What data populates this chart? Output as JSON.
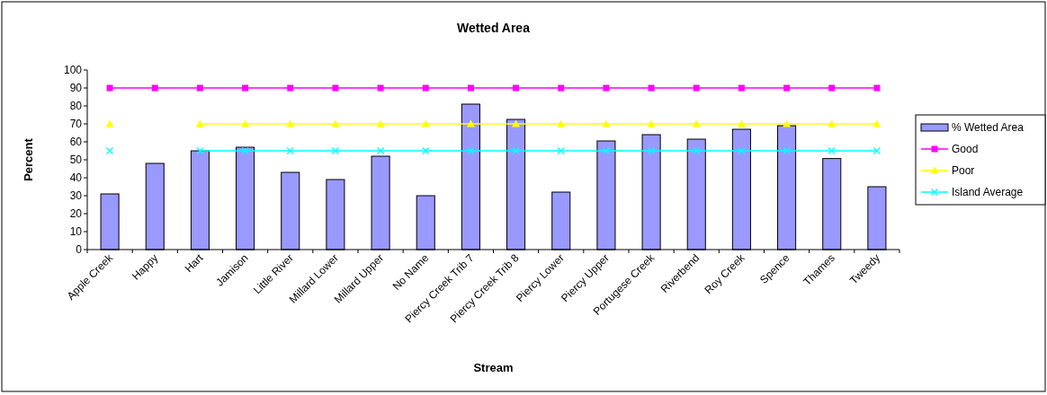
{
  "chart_data": {
    "type": "bar",
    "title": "Wetted Area",
    "xlabel": "Stream",
    "ylabel": "Percent",
    "categories": [
      "Apple Creek",
      "Happy",
      "Hart",
      "Jamison",
      "Little River",
      "Millard Lower",
      "Millard Upper",
      "No Name",
      "Piercy Creek Trib 7",
      "Piercy Creek Trib 8",
      "Piercy Lower",
      "Piercy Upper",
      "Portugese Creek",
      "Riverbend",
      "Roy Creek",
      "Spence",
      "Thames",
      "Tweedy"
    ],
    "series": [
      {
        "name": "% Wetted Area",
        "color": "#9999ff",
        "values": [
          31,
          48,
          55,
          57,
          43,
          39,
          52,
          30,
          81,
          72.5,
          32,
          60.5,
          64,
          61.5,
          67,
          69,
          50.7,
          35
        ]
      },
      {
        "name": "Good",
        "type": "line",
        "color": "#ff00ff",
        "marker": "square",
        "values": [
          90,
          90,
          90,
          90,
          90,
          90,
          90,
          90,
          90,
          90,
          90,
          90,
          90,
          90,
          90,
          90,
          90,
          90
        ]
      },
      {
        "name": "Poor",
        "type": "line",
        "color": "#ffff00",
        "marker": "triangle",
        "values": [
          70,
          null,
          70,
          70,
          70,
          70,
          70,
          70,
          70,
          70,
          70,
          70,
          70,
          70,
          70,
          70,
          70,
          70
        ]
      },
      {
        "name": "Island Average",
        "type": "line",
        "color": "#00ffff",
        "marker": "cross",
        "values": [
          55,
          null,
          55,
          55,
          55,
          55,
          55,
          55,
          55,
          55,
          55,
          55,
          55,
          55,
          55,
          55,
          55,
          55
        ]
      }
    ],
    "ylim": [
      0,
      100
    ],
    "yticks": [
      0,
      10,
      20,
      30,
      40,
      50,
      60,
      70,
      80,
      90,
      100
    ],
    "grid": false,
    "legend": "right"
  }
}
